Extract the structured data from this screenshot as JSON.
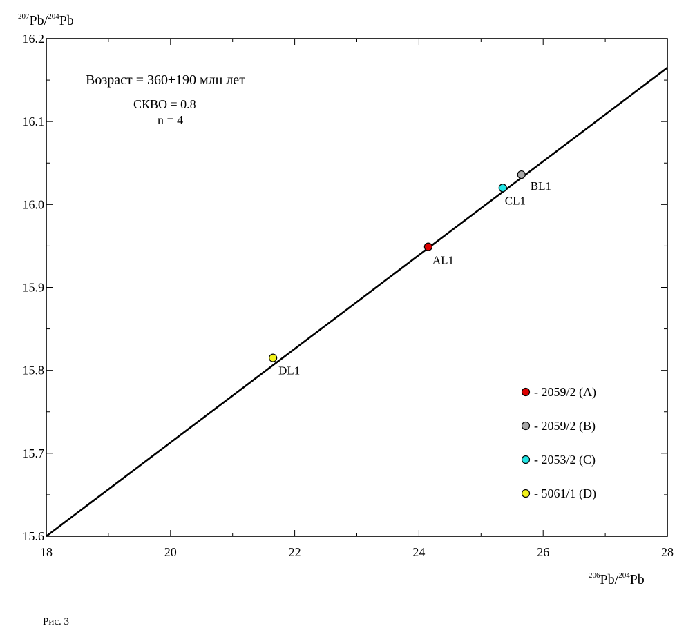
{
  "chart_data": {
    "type": "scatter",
    "xlabel_sup1": "206",
    "xlabel_main1": "Pb/",
    "xlabel_sup2": "204",
    "xlabel_main2": "Pb",
    "ylabel_sup1": "207",
    "ylabel_main1": "Pb/",
    "ylabel_sup2": "204",
    "ylabel_main2": "Pb",
    "xlim": [
      18,
      28
    ],
    "ylim": [
      15.6,
      16.2
    ],
    "x_ticks": [
      18,
      20,
      22,
      24,
      26,
      28
    ],
    "x_tick_labels": [
      "18",
      "20",
      "22",
      "24",
      "26",
      "28"
    ],
    "y_ticks": [
      15.6,
      15.7,
      15.8,
      15.9,
      16.0,
      16.1,
      16.2
    ],
    "y_tick_labels": [
      "15.6",
      "15.7",
      "15.8",
      "15.9",
      "16.0",
      "16.1",
      "16.2"
    ],
    "grid": false,
    "legend_position": "bottom-right",
    "annotation": {
      "age": "Возраст = 360±190 млн лет",
      "mswd": "СКВО = 0.8",
      "n": "n = 4"
    },
    "regression_line": {
      "x": [
        18,
        28
      ],
      "y": [
        15.6,
        16.165
      ]
    },
    "points": [
      {
        "label": "AL1",
        "x": 24.15,
        "y": 15.949,
        "color": "#dd0000"
      },
      {
        "label": "BL1",
        "x": 25.65,
        "y": 16.036,
        "color": "#a8a8a8"
      },
      {
        "label": "CL1",
        "x": 25.35,
        "y": 16.02,
        "color": "#22e4e4"
      },
      {
        "label": "DL1",
        "x": 21.65,
        "y": 15.815,
        "color": "#f2f21a"
      }
    ],
    "legend": [
      {
        "label": "- 2059/2 (A)",
        "color": "#dd0000"
      },
      {
        "label": "- 2059/2 (B)",
        "color": "#a8a8a8"
      },
      {
        "label": "- 2053/2 (C)",
        "color": "#22e4e4"
      },
      {
        "label": "- 5061/1 (D)",
        "color": "#f2f21a"
      }
    ]
  },
  "caption": "Рис. 3"
}
